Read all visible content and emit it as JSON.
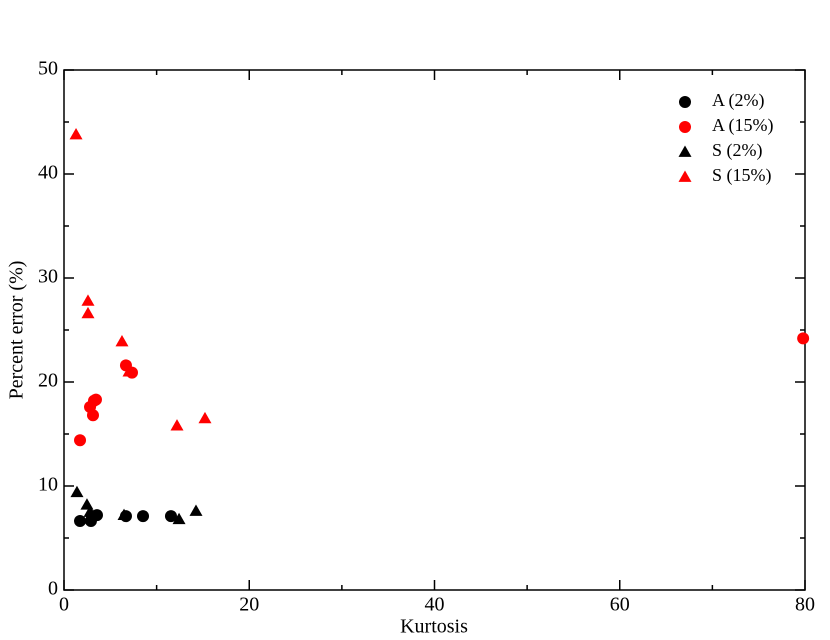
{
  "chart_data": {
    "type": "scatter",
    "xlabel": "Kurtosis",
    "ylabel": "Percent error (%)",
    "xlim": [
      0,
      80
    ],
    "ylim": [
      0,
      50
    ],
    "xticks": [
      0,
      20,
      40,
      60,
      80
    ],
    "yticks": [
      0,
      10,
      20,
      30,
      40,
      50
    ],
    "legend": "upper right",
    "series": [
      {
        "name": "A (2%)",
        "color": "#000000",
        "marker": "circle",
        "x": [
          1.73,
          2.91,
          3.02,
          3.56,
          6.69,
          8.53,
          11.55
        ],
        "values": [
          6.63,
          6.63,
          7.1,
          7.2,
          7.1,
          7.1,
          7.1
        ]
      },
      {
        "name": "A (15%)",
        "color": "#ff0000",
        "marker": "circle",
        "x": [
          1.73,
          2.81,
          3.13,
          3.24,
          3.45,
          6.69,
          7.34,
          79.8
        ],
        "values": [
          14.4,
          17.6,
          16.8,
          18.2,
          18.3,
          21.6,
          20.9,
          24.2
        ]
      },
      {
        "name": "S (2%)",
        "color": "#000000",
        "marker": "triangle",
        "x": [
          1.4,
          2.48,
          2.81,
          6.48,
          12.42,
          14.25
        ],
        "values": [
          9.4,
          8.2,
          7.5,
          7.2,
          6.8,
          7.6
        ]
      },
      {
        "name": "S (15%)",
        "color": "#ff0000",
        "marker": "triangle",
        "x": [
          1.3,
          2.59,
          2.59,
          6.26,
          7.02,
          12.2,
          15.22
        ],
        "values": [
          43.8,
          27.8,
          26.6,
          23.9,
          21.0,
          15.8,
          16.5
        ]
      }
    ]
  }
}
